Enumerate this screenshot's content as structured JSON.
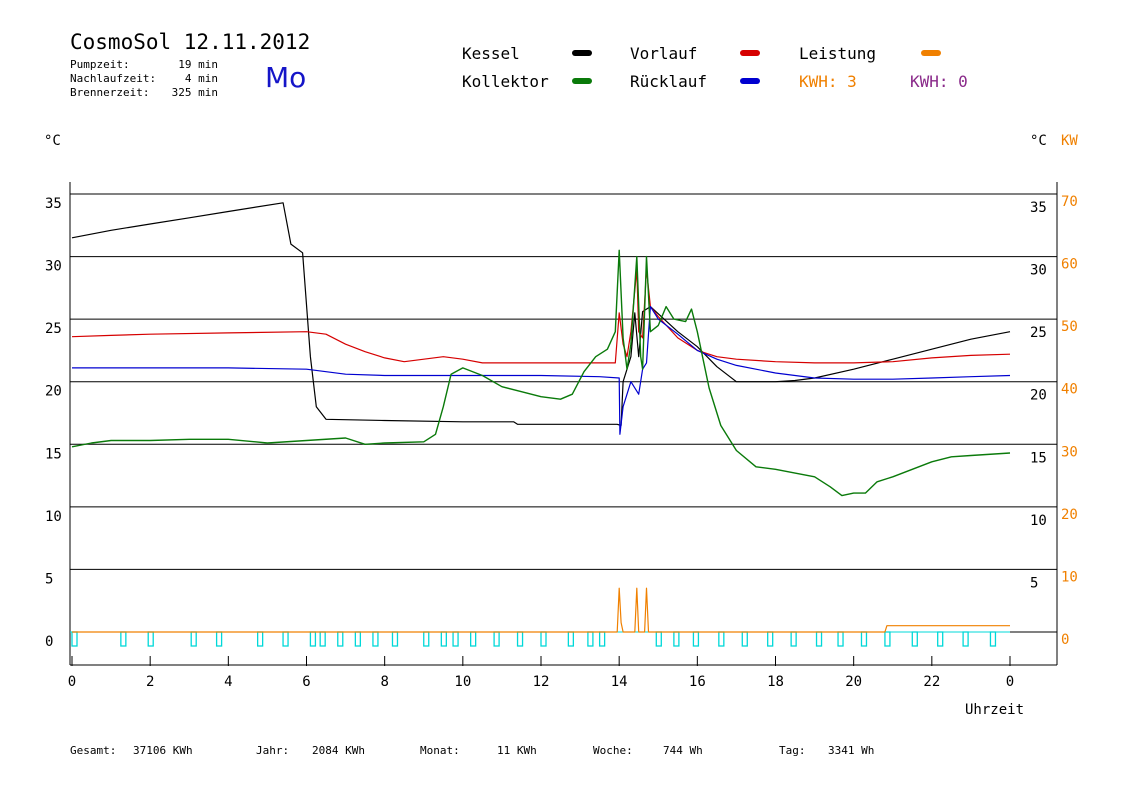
{
  "header": {
    "title": "CosmoSol 12.11.2012",
    "day": "Mo",
    "stats": [
      {
        "label": "Pumpzeit:",
        "value": "19 min"
      },
      {
        "label": "Nachlaufzeit:",
        "value": "4 min"
      },
      {
        "label": "Brennerzeit:",
        "value": "325 min"
      }
    ]
  },
  "legend": [
    {
      "name": "Kessel",
      "color": "#000000"
    },
    {
      "name": "Kollektor",
      "color": "#0a7a0a"
    },
    {
      "name": "Vorlauf",
      "color": "#d60000"
    },
    {
      "name": "Rücklauf",
      "color": "#0000d0"
    },
    {
      "name": "Leistung",
      "color": "#f08000"
    }
  ],
  "kwh": [
    {
      "text": "KWH: 3",
      "color": "#f08000"
    },
    {
      "text": "KWH: 0",
      "color": "#8a2a8a"
    }
  ],
  "axes": {
    "left_unit": "°C",
    "right_unit_c": "°C",
    "right_unit_kw": "KW",
    "xlabel": "Uhrzeit",
    "xticks": [
      "0",
      "2",
      "4",
      "6",
      "8",
      "10",
      "12",
      "14",
      "16",
      "18",
      "20",
      "22",
      "0"
    ],
    "ticks_left": [
      "35",
      "30",
      "25",
      "20",
      "15",
      "10",
      "5",
      "0"
    ],
    "ticks_right_c": [
      "35",
      "30",
      "25",
      "20",
      "15",
      "10",
      "5"
    ],
    "ticks_right_kw": [
      "70",
      "60",
      "50",
      "40",
      "30",
      "20",
      "10",
      "0"
    ]
  },
  "footer": [
    {
      "label": "Gesamt:",
      "value": "37106 KWh"
    },
    {
      "label": "Jahr:",
      "value": "2084 KWh"
    },
    {
      "label": "Monat:",
      "value": "11 KWh"
    },
    {
      "label": "Woche:",
      "value": "744 Wh"
    },
    {
      "label": "Tag:",
      "value": "3341 Wh"
    }
  ],
  "chart_data": {
    "type": "line",
    "x_unit": "hours",
    "xlim": [
      0,
      24
    ],
    "ylim": [
      0,
      35
    ],
    "y2lim_kw": [
      0,
      70
    ],
    "gridlines_y": [
      5,
      10,
      15,
      20,
      25,
      30,
      35
    ],
    "series": [
      {
        "name": "Kessel",
        "color": "#000000",
        "points": [
          [
            0,
            31.5
          ],
          [
            1,
            32.1
          ],
          [
            2,
            32.6
          ],
          [
            3,
            33.1
          ],
          [
            4,
            33.6
          ],
          [
            5.4,
            34.3
          ],
          [
            5.6,
            31
          ],
          [
            5.9,
            30.3
          ],
          [
            6.1,
            22
          ],
          [
            6.25,
            18
          ],
          [
            6.5,
            17
          ],
          [
            8,
            16.9
          ],
          [
            10,
            16.8
          ],
          [
            11.3,
            16.8
          ],
          [
            11.4,
            16.6
          ],
          [
            13,
            16.6
          ],
          [
            13.95,
            16.6
          ],
          [
            14.05,
            16.5
          ],
          [
            14.1,
            20
          ],
          [
            14.3,
            22
          ],
          [
            14.4,
            25.5
          ],
          [
            14.5,
            22
          ],
          [
            14.6,
            25.6
          ],
          [
            14.8,
            26
          ],
          [
            15.5,
            24
          ],
          [
            16,
            22.8
          ],
          [
            16.5,
            21.2
          ],
          [
            17,
            20
          ],
          [
            18,
            20
          ],
          [
            18.5,
            20.1
          ],
          [
            19,
            20.3
          ],
          [
            20,
            21
          ],
          [
            21,
            21.8
          ],
          [
            22,
            22.6
          ],
          [
            23,
            23.4
          ],
          [
            24,
            24
          ]
        ]
      },
      {
        "name": "Vorlauf",
        "color": "#d60000",
        "points": [
          [
            0,
            23.6
          ],
          [
            1,
            23.7
          ],
          [
            2,
            23.8
          ],
          [
            4,
            23.9
          ],
          [
            6,
            24
          ],
          [
            6.5,
            23.8
          ],
          [
            7,
            23
          ],
          [
            7.5,
            22.4
          ],
          [
            8,
            21.9
          ],
          [
            8.5,
            21.6
          ],
          [
            9,
            21.8
          ],
          [
            9.5,
            22
          ],
          [
            10,
            21.8
          ],
          [
            10.5,
            21.5
          ],
          [
            12,
            21.5
          ],
          [
            13,
            21.5
          ],
          [
            13.9,
            21.5
          ],
          [
            14,
            25.5
          ],
          [
            14.1,
            23
          ],
          [
            14.2,
            22
          ],
          [
            14.3,
            24
          ],
          [
            14.45,
            29
          ],
          [
            14.5,
            24
          ],
          [
            14.6,
            23.5
          ],
          [
            14.7,
            29
          ],
          [
            14.8,
            26
          ],
          [
            15,
            25.2
          ],
          [
            15.5,
            23.5
          ],
          [
            16,
            22.5
          ],
          [
            16.5,
            22
          ],
          [
            17,
            21.8
          ],
          [
            18,
            21.6
          ],
          [
            19,
            21.5
          ],
          [
            20,
            21.5
          ],
          [
            21,
            21.6
          ],
          [
            22,
            21.9
          ],
          [
            23,
            22.1
          ],
          [
            24,
            22.2
          ]
        ]
      },
      {
        "name": "Rücklauf",
        "color": "#0000d0",
        "points": [
          [
            0,
            21.1
          ],
          [
            2,
            21.1
          ],
          [
            4,
            21.1
          ],
          [
            6,
            21
          ],
          [
            7,
            20.6
          ],
          [
            8,
            20.5
          ],
          [
            10,
            20.5
          ],
          [
            12,
            20.5
          ],
          [
            13.5,
            20.4
          ],
          [
            14,
            20.3
          ],
          [
            14.02,
            15.8
          ],
          [
            14.1,
            18
          ],
          [
            14.3,
            20
          ],
          [
            14.5,
            19
          ],
          [
            14.6,
            21
          ],
          [
            14.7,
            21.5
          ],
          [
            14.8,
            26
          ],
          [
            15,
            25
          ],
          [
            15.5,
            23.8
          ],
          [
            16,
            22.5
          ],
          [
            16.5,
            21.8
          ],
          [
            17,
            21.3
          ],
          [
            18,
            20.7
          ],
          [
            19,
            20.3
          ],
          [
            20,
            20.2
          ],
          [
            21,
            20.2
          ],
          [
            22,
            20.3
          ],
          [
            23,
            20.4
          ],
          [
            24,
            20.5
          ]
        ]
      },
      {
        "name": "Kollektor",
        "color": "#0a7a0a",
        "points": [
          [
            0,
            14.8
          ],
          [
            0.5,
            15.1
          ],
          [
            1,
            15.3
          ],
          [
            2,
            15.3
          ],
          [
            3,
            15.4
          ],
          [
            4,
            15.4
          ],
          [
            5,
            15.1
          ],
          [
            6,
            15.3
          ],
          [
            7,
            15.5
          ],
          [
            7.5,
            15
          ],
          [
            8,
            15.1
          ],
          [
            9,
            15.2
          ],
          [
            9.3,
            15.8
          ],
          [
            9.5,
            18
          ],
          [
            9.7,
            20.6
          ],
          [
            10,
            21.1
          ],
          [
            10.5,
            20.5
          ],
          [
            11,
            19.6
          ],
          [
            11.5,
            19.2
          ],
          [
            12,
            18.8
          ],
          [
            12.5,
            18.6
          ],
          [
            12.8,
            19
          ],
          [
            13.1,
            20.8
          ],
          [
            13.4,
            22
          ],
          [
            13.7,
            22.6
          ],
          [
            13.9,
            24
          ],
          [
            14,
            30.5
          ],
          [
            14.1,
            23.5
          ],
          [
            14.2,
            21
          ],
          [
            14.3,
            23
          ],
          [
            14.45,
            30
          ],
          [
            14.55,
            22
          ],
          [
            14.6,
            21
          ],
          [
            14.7,
            30
          ],
          [
            14.8,
            24
          ],
          [
            15,
            24.5
          ],
          [
            15.2,
            26
          ],
          [
            15.4,
            25
          ],
          [
            15.7,
            24.8
          ],
          [
            15.85,
            25.8
          ],
          [
            16,
            24
          ],
          [
            16.3,
            19.5
          ],
          [
            16.6,
            16.5
          ],
          [
            17,
            14.5
          ],
          [
            17.5,
            13.2
          ],
          [
            18,
            13
          ],
          [
            18.5,
            12.7
          ],
          [
            19,
            12.4
          ],
          [
            19.4,
            11.6
          ],
          [
            19.7,
            10.9
          ],
          [
            20,
            11.1
          ],
          [
            20.3,
            11.1
          ],
          [
            20.6,
            12
          ],
          [
            21,
            12.4
          ],
          [
            21.5,
            13
          ],
          [
            22,
            13.6
          ],
          [
            22.5,
            14
          ],
          [
            23,
            14.1
          ],
          [
            24,
            14.3
          ]
        ]
      },
      {
        "name": "Leistung",
        "color": "#f08000",
        "y_axis": "kw",
        "points": [
          [
            0,
            0
          ],
          [
            13.95,
            0
          ],
          [
            14,
            7
          ],
          [
            14.05,
            1.5
          ],
          [
            14.1,
            0
          ],
          [
            14.4,
            0
          ],
          [
            14.45,
            7
          ],
          [
            14.5,
            0
          ],
          [
            14.65,
            0
          ],
          [
            14.7,
            7
          ],
          [
            14.75,
            0
          ],
          [
            20.8,
            0
          ],
          [
            20.85,
            1
          ],
          [
            24,
            1
          ]
        ]
      }
    ]
  }
}
